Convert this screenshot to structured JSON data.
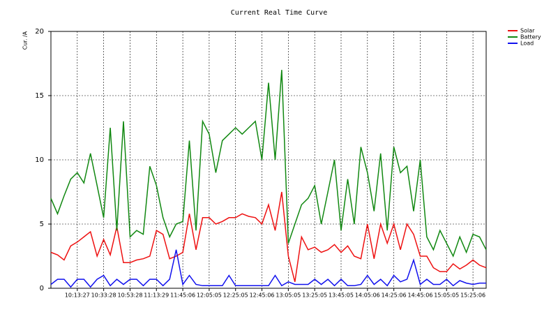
{
  "chart_data": {
    "type": "line",
    "title": "Current Real Time Curve",
    "y_label": "Cur. /A",
    "x": [
      0,
      2,
      4,
      6,
      8,
      10,
      12,
      14,
      16,
      18,
      20,
      22,
      24,
      26,
      28,
      30,
      32,
      34,
      36,
      38,
      40,
      42,
      44,
      46,
      48,
      50,
      52,
      54,
      56,
      58,
      60,
      62,
      64,
      66,
      68,
      70,
      72,
      74,
      76,
      78,
      80,
      82,
      84,
      86,
      88,
      90,
      92,
      94,
      96,
      98,
      100,
      102,
      104,
      106,
      108,
      110,
      112,
      114,
      116,
      118,
      120,
      122,
      124,
      126,
      128,
      130,
      132
    ],
    "series": [
      {
        "name": "Solar",
        "color": "#ee1111",
        "values": [
          2.8,
          2.6,
          2.2,
          3.3,
          3.6,
          4.0,
          4.4,
          2.5,
          3.8,
          2.6,
          4.8,
          2.0,
          2.0,
          2.2,
          2.3,
          2.5,
          4.5,
          4.2,
          2.3,
          2.5,
          2.8,
          5.8,
          3.0,
          5.5,
          5.5,
          5.0,
          5.2,
          5.5,
          5.5,
          5.8,
          5.6,
          5.5,
          5.0,
          6.5,
          4.5,
          7.5,
          2.5,
          0.5,
          4.0,
          3.0,
          3.2,
          2.8,
          3.0,
          3.4,
          2.8,
          3.3,
          2.5,
          2.3,
          5.0,
          2.3,
          5.0,
          3.5,
          5.0,
          3.0,
          5.0,
          4.2,
          2.5,
          2.5,
          1.6,
          1.3,
          1.3,
          1.9,
          1.5,
          1.8,
          2.2,
          1.8,
          1.6
        ]
      },
      {
        "name": "Battery",
        "color": "#118811",
        "values": [
          7.0,
          5.8,
          7.2,
          8.5,
          9.0,
          8.2,
          10.5,
          8.0,
          5.5,
          12.5,
          4.5,
          13.0,
          4.0,
          4.5,
          4.2,
          9.5,
          8.0,
          5.5,
          4.0,
          5.0,
          5.2,
          11.5,
          4.5,
          13.0,
          12.0,
          9.0,
          11.5,
          12.0,
          12.5,
          12.0,
          12.5,
          13.0,
          10.0,
          16.0,
          10.0,
          17.0,
          3.5,
          5.0,
          6.5,
          7.0,
          8.0,
          5.0,
          7.5,
          10.0,
          4.5,
          8.5,
          5.0,
          11.0,
          9.0,
          6.0,
          10.5,
          4.5,
          11.0,
          9.0,
          9.5,
          6.0,
          10.0,
          4.0,
          3.0,
          4.5,
          3.5,
          2.5,
          4.0,
          2.8,
          4.2,
          4.0,
          3.0
        ]
      },
      {
        "name": "Load",
        "color": "#1111ee",
        "values": [
          0.3,
          0.7,
          0.7,
          0.1,
          0.7,
          0.7,
          0.1,
          0.7,
          1.0,
          0.2,
          0.7,
          0.3,
          0.7,
          0.7,
          0.2,
          0.7,
          0.7,
          0.2,
          0.7,
          3.0,
          0.3,
          1.0,
          0.3,
          0.2,
          0.2,
          0.2,
          0.2,
          1.0,
          0.2,
          0.2,
          0.2,
          0.2,
          0.2,
          0.2,
          1.0,
          0.2,
          0.5,
          0.3,
          0.3,
          0.3,
          0.7,
          0.3,
          0.7,
          0.2,
          0.7,
          0.2,
          0.2,
          0.3,
          1.0,
          0.3,
          0.7,
          0.2,
          1.0,
          0.5,
          0.7,
          2.2,
          0.3,
          0.7,
          0.3,
          0.3,
          0.7,
          0.2,
          0.6,
          0.4,
          0.3,
          0.4,
          0.4
        ]
      }
    ],
    "xlim": [
      0,
      132
    ],
    "xticks": [
      {
        "value": 8,
        "label": "10:13:27"
      },
      {
        "value": 16,
        "label": "10:33:28"
      },
      {
        "value": 24,
        "label": "10:53:28"
      },
      {
        "value": 32,
        "label": "11:13:29"
      },
      {
        "value": 40,
        "label": "11:45:06"
      },
      {
        "value": 48,
        "label": "12:05:05"
      },
      {
        "value": 56,
        "label": "12:25:05"
      },
      {
        "value": 64,
        "label": "12:45:06"
      },
      {
        "value": 72,
        "label": "13:05:05"
      },
      {
        "value": 80,
        "label": "13:25:05"
      },
      {
        "value": 88,
        "label": "13:45:05"
      },
      {
        "value": 96,
        "label": "14:05:06"
      },
      {
        "value": 104,
        "label": "14:25:06"
      },
      {
        "value": 112,
        "label": "14:45:06"
      },
      {
        "value": 120,
        "label": "15:05:05"
      },
      {
        "value": 128,
        "label": "15:25:06"
      }
    ],
    "ylim": [
      0,
      20
    ],
    "yticks": [
      0,
      5,
      10,
      15,
      20
    ],
    "grid": true
  }
}
